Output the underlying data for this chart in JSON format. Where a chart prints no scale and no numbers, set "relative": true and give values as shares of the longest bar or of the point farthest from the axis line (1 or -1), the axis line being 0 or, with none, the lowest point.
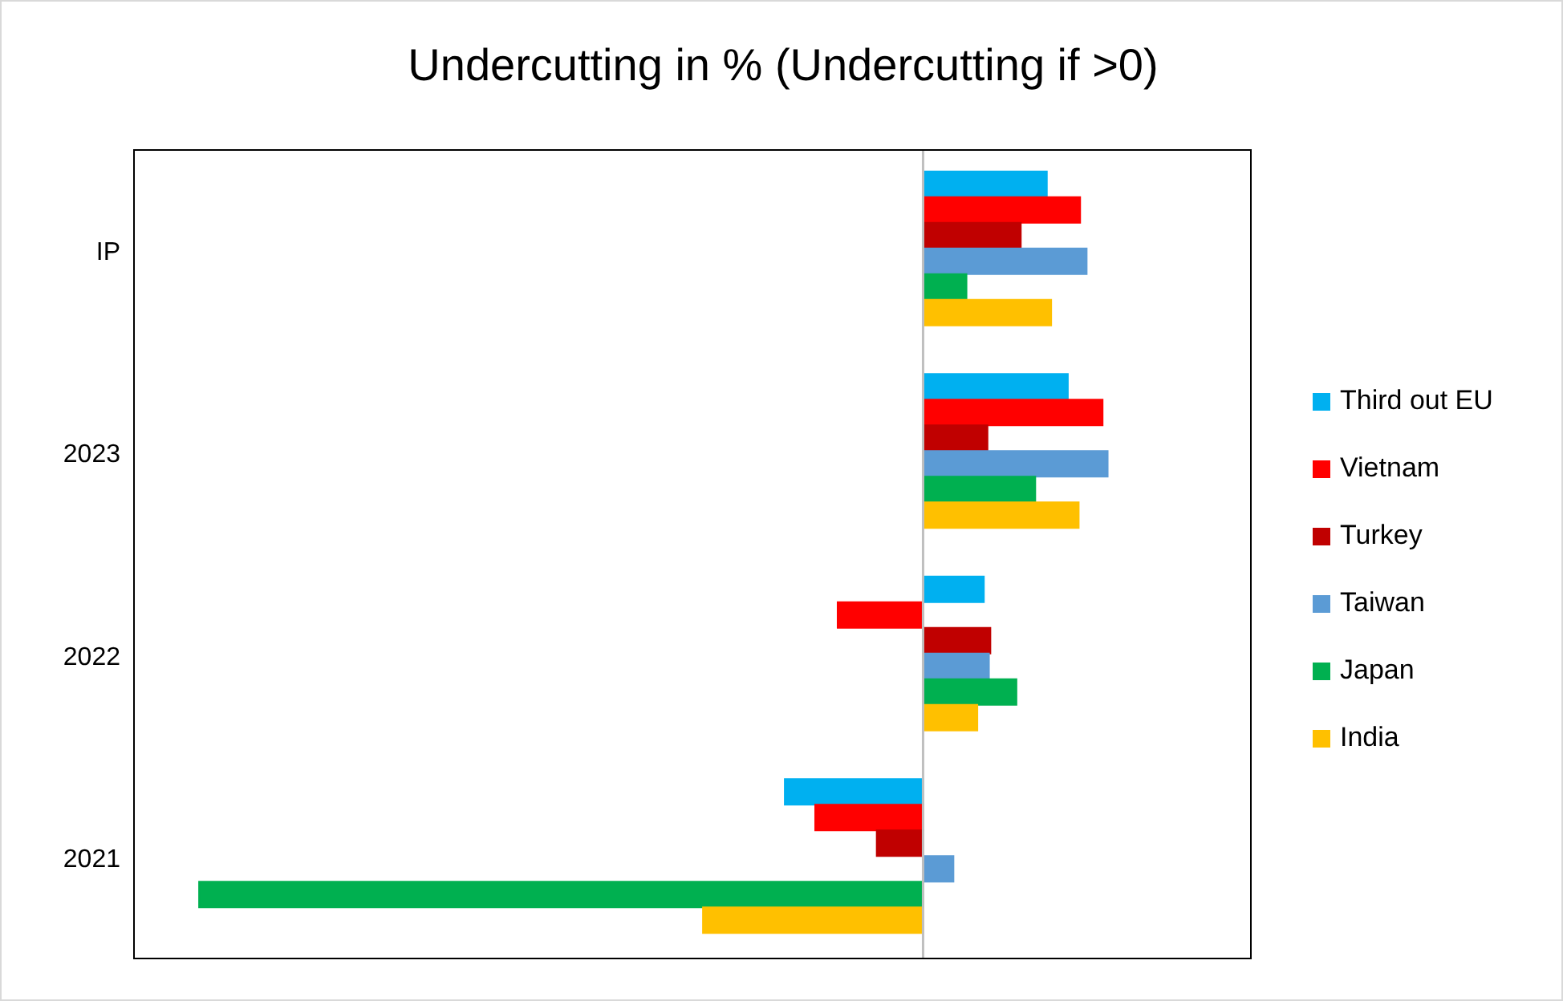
{
  "chart_data": {
    "type": "bar",
    "orientation": "horizontal",
    "relative": true,
    "title": "Undercutting in % (Undercutting if >0)",
    "categories": [
      "IP",
      "2023",
      "2022",
      "2021"
    ],
    "series": [
      {
        "name": "Third out EU",
        "color": "#00b0f0",
        "values": [
          0.171,
          0.2,
          0.084,
          -0.191
        ]
      },
      {
        "name": "Vietnam",
        "color": "#ff0000",
        "values": [
          0.217,
          0.248,
          -0.118,
          -0.149
        ]
      },
      {
        "name": "Turkey",
        "color": "#c00000",
        "values": [
          0.135,
          0.089,
          0.093,
          -0.064
        ]
      },
      {
        "name": "Taiwan",
        "color": "#5b9bd5",
        "values": [
          0.226,
          0.255,
          0.091,
          0.042
        ]
      },
      {
        "name": "Japan",
        "color": "#00b050",
        "values": [
          0.06,
          0.155,
          0.129,
          -1
        ]
      },
      {
        "name": "India",
        "color": "#ffc000",
        "values": [
          0.177,
          0.215,
          0.075,
          -0.304
        ]
      }
    ],
    "legend": "right",
    "grid": false
  }
}
